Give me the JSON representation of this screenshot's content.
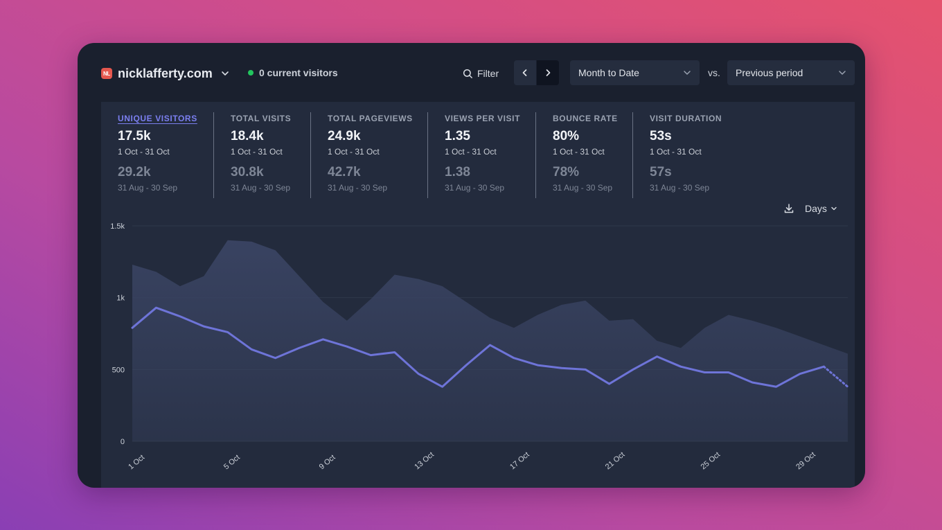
{
  "header": {
    "favicon_text": "NL",
    "site_name": "nicklafferty.com",
    "current_visitors": "0 current visitors",
    "filter_label": "Filter",
    "period_select": "Month to Date",
    "vs_label": "vs.",
    "compare_select": "Previous period"
  },
  "metrics": [
    {
      "label": "UNIQUE VISITORS",
      "value": "17.5k",
      "range": "1 Oct - 31 Oct",
      "prev_value": "29.2k",
      "prev_range": "31 Aug - 30 Sep"
    },
    {
      "label": "TOTAL VISITS",
      "value": "18.4k",
      "range": "1 Oct - 31 Oct",
      "prev_value": "30.8k",
      "prev_range": "31 Aug - 30 Sep"
    },
    {
      "label": "TOTAL PAGEVIEWS",
      "value": "24.9k",
      "range": "1 Oct - 31 Oct",
      "prev_value": "42.7k",
      "prev_range": "31 Aug - 30 Sep"
    },
    {
      "label": "VIEWS PER VISIT",
      "value": "1.35",
      "range": "1 Oct - 31 Oct",
      "prev_value": "1.38",
      "prev_range": "31 Aug - 30 Sep"
    },
    {
      "label": "BOUNCE RATE",
      "value": "80%",
      "range": "1 Oct - 31 Oct",
      "prev_value": "78%",
      "prev_range": "31 Aug - 30 Sep"
    },
    {
      "label": "VISIT DURATION",
      "value": "53s",
      "range": "1 Oct - 31 Oct",
      "prev_value": "57s",
      "prev_range": "31 Aug - 30 Sep"
    }
  ],
  "chart_controls": {
    "interval_label": "Days"
  },
  "colors": {
    "accent": "#6e74d8",
    "comparison_area": "#3a4463",
    "live_dot": "#22c55e"
  },
  "chart_data": {
    "type": "area",
    "title": "",
    "xlabel": "",
    "ylabel": "",
    "ylim": [
      0,
      1500
    ],
    "y_ticks": [
      {
        "value": 0,
        "label": "0"
      },
      {
        "value": 500,
        "label": "500"
      },
      {
        "value": 1000,
        "label": "1k"
      },
      {
        "value": 1500,
        "label": "1.5k"
      }
    ],
    "x_ticks": [
      {
        "index": 0,
        "label": "1 Oct"
      },
      {
        "index": 4,
        "label": "5 Oct"
      },
      {
        "index": 8,
        "label": "9 Oct"
      },
      {
        "index": 12,
        "label": "13 Oct"
      },
      {
        "index": 16,
        "label": "17 Oct"
      },
      {
        "index": 20,
        "label": "21 Oct"
      },
      {
        "index": 24,
        "label": "25 Oct"
      },
      {
        "index": 28,
        "label": "29 Oct"
      }
    ],
    "categories": [
      "1 Oct",
      "2 Oct",
      "3 Oct",
      "4 Oct",
      "5 Oct",
      "6 Oct",
      "7 Oct",
      "8 Oct",
      "9 Oct",
      "10 Oct",
      "11 Oct",
      "12 Oct",
      "13 Oct",
      "14 Oct",
      "15 Oct",
      "16 Oct",
      "17 Oct",
      "18 Oct",
      "19 Oct",
      "20 Oct",
      "21 Oct",
      "22 Oct",
      "23 Oct",
      "24 Oct",
      "25 Oct",
      "26 Oct",
      "27 Oct",
      "28 Oct",
      "29 Oct",
      "30 Oct",
      "31 Oct"
    ],
    "series": [
      {
        "name": "Unique visitors (1 Oct - 31 Oct)",
        "style": "line",
        "incomplete_from_index": 29,
        "values": [
          790,
          930,
          870,
          800,
          760,
          640,
          580,
          650,
          710,
          660,
          600,
          620,
          470,
          380,
          530,
          670,
          580,
          530,
          510,
          500,
          400,
          500,
          590,
          520,
          480,
          480,
          410,
          380,
          470,
          520,
          380
        ]
      },
      {
        "name": "Unique visitors (31 Aug - 30 Sep)",
        "style": "area",
        "values": [
          1230,
          1180,
          1080,
          1150,
          1400,
          1390,
          1330,
          1150,
          970,
          840,
          990,
          1160,
          1130,
          1080,
          970,
          860,
          790,
          880,
          950,
          980,
          840,
          850,
          700,
          650,
          790,
          880,
          840,
          790,
          730,
          670,
          610
        ]
      }
    ]
  }
}
